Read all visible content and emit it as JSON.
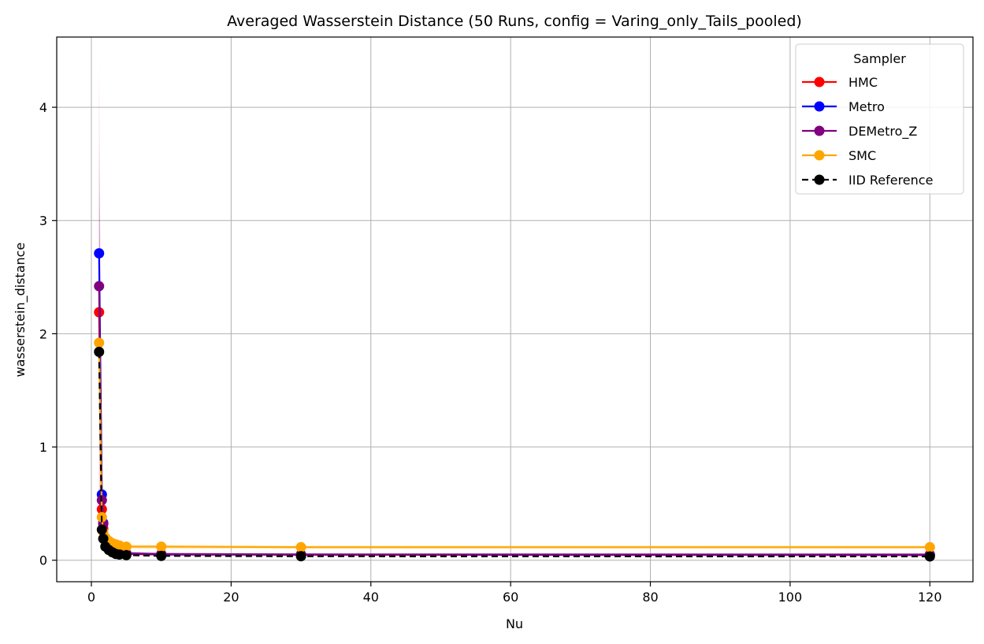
{
  "chart_data": {
    "type": "line",
    "title": "Averaged Wasserstein Distance (50 Runs, config = Varing_only_Tails_pooled)",
    "xlabel": "Nu",
    "ylabel": "wasserstein_distance",
    "xlim": [
      -4.96,
      126.17
    ],
    "ylim": [
      -0.19,
      4.62
    ],
    "x_ticks": [
      0,
      20,
      40,
      60,
      80,
      100,
      120
    ],
    "y_ticks": [
      0,
      1,
      2,
      3,
      4
    ],
    "grid": true,
    "legend": {
      "title": "Sampler",
      "position": "top-right"
    },
    "x": [
      1.1,
      1.5,
      1.7,
      2,
      2.5,
      3,
      3.5,
      4,
      5,
      10,
      30,
      120
    ],
    "series": [
      {
        "name": "HMC",
        "color": "#ff0000",
        "style": "solid",
        "values": [
          2.19,
          0.45,
          0.28,
          0.18,
          0.12,
          0.09,
          0.075,
          0.065,
          0.055,
          0.05,
          0.048,
          0.045
        ],
        "band_upper": [
          4.4,
          0.6,
          0.35,
          0.22,
          0.15,
          0.11,
          0.09,
          0.08,
          0.07,
          0.06,
          0.058,
          0.055
        ],
        "band_lower": [
          0.4,
          0.3,
          0.2,
          0.14,
          0.09,
          0.07,
          0.06,
          0.05,
          0.045,
          0.04,
          0.038,
          0.036
        ]
      },
      {
        "name": "Metro",
        "color": "#0000ff",
        "style": "solid",
        "values": [
          2.71,
          0.58,
          0.33,
          0.2,
          0.13,
          0.095,
          0.08,
          0.07,
          0.06,
          0.052,
          0.05,
          0.048
        ],
        "band_upper": [
          3.7,
          0.75,
          0.42,
          0.25,
          0.16,
          0.12,
          0.1,
          0.085,
          0.075,
          0.065,
          0.06,
          0.058
        ],
        "band_lower": [
          1.6,
          0.42,
          0.25,
          0.15,
          0.1,
          0.075,
          0.06,
          0.055,
          0.05,
          0.042,
          0.04,
          0.038
        ]
      },
      {
        "name": "DEMetro_Z",
        "color": "#800080",
        "style": "solid",
        "values": [
          2.42,
          0.53,
          0.32,
          0.19,
          0.13,
          0.095,
          0.08,
          0.07,
          0.06,
          0.055,
          0.05,
          0.05
        ],
        "band_upper": [
          3.3,
          0.68,
          0.4,
          0.24,
          0.16,
          0.12,
          0.1,
          0.085,
          0.075,
          0.065,
          0.062,
          0.06
        ],
        "band_lower": [
          1.5,
          0.38,
          0.24,
          0.14,
          0.1,
          0.075,
          0.065,
          0.055,
          0.05,
          0.045,
          0.042,
          0.04
        ]
      },
      {
        "name": "SMC",
        "color": "#ffa500",
        "style": "solid",
        "values": [
          1.92,
          0.38,
          0.25,
          0.2,
          0.17,
          0.15,
          0.14,
          0.13,
          0.12,
          0.12,
          0.115,
          0.115
        ],
        "band_upper": [
          2.1,
          0.45,
          0.3,
          0.23,
          0.2,
          0.17,
          0.16,
          0.15,
          0.14,
          0.135,
          0.13,
          0.13
        ],
        "band_lower": [
          1.75,
          0.32,
          0.21,
          0.17,
          0.14,
          0.13,
          0.12,
          0.11,
          0.1,
          0.1,
          0.1,
          0.1
        ]
      },
      {
        "name": "IID Reference",
        "color": "#000000",
        "style": "dashed",
        "values": [
          1.84,
          0.27,
          0.19,
          0.12,
          0.09,
          0.07,
          0.055,
          0.05,
          0.045,
          0.038,
          0.035,
          0.033
        ]
      }
    ]
  }
}
